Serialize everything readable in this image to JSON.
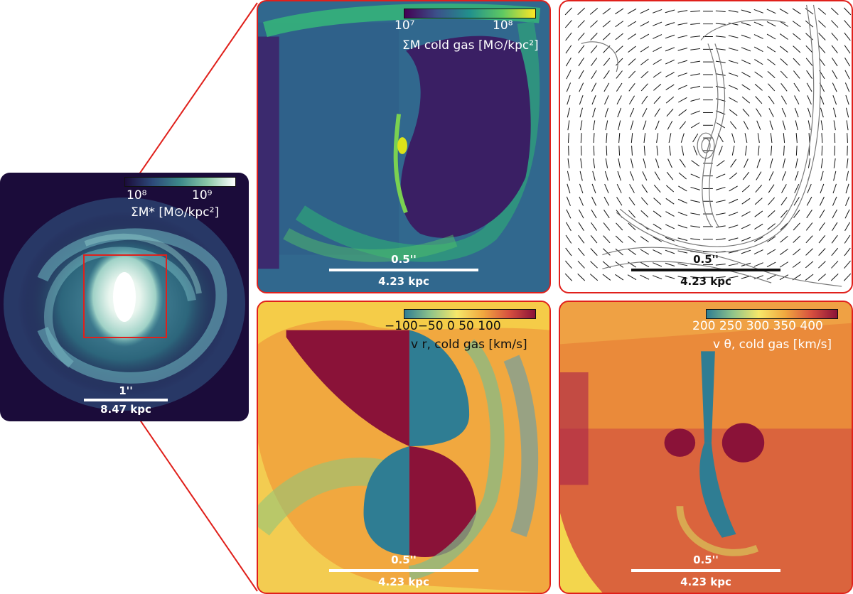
{
  "overview": {
    "cbar_tick_low": "10⁸",
    "cbar_tick_high": "10⁹",
    "cbar_label": "ΣM* [M⊙/kpc²]",
    "scale_angle": "1''",
    "scale_distance": "8.47 kpc"
  },
  "panels": {
    "cold_gas_density": {
      "cbar_tick_low": "10⁷",
      "cbar_tick_high": "10⁸",
      "cbar_label": "ΣM cold gas [M⊙/kpc²]",
      "scale_angle": "0.5''",
      "scale_distance": "4.23 kpc"
    },
    "velocity_field": {
      "scale_angle": "0.5''",
      "scale_distance": "4.23 kpc"
    },
    "radial_velocity": {
      "cbar_ticks": "−100−50   0   50  100",
      "cbar_label": "v r, cold gas [km/s]",
      "scale_angle": "0.5''",
      "scale_distance": "4.23 kpc"
    },
    "rotational_velocity": {
      "cbar_ticks": "200 250 300 350 400",
      "cbar_label": "v θ, cold gas [km/s]",
      "scale_angle": "0.5''",
      "scale_distance": "4.23 kpc"
    }
  },
  "colors": {
    "highlight": "#e0201b",
    "cubehelix_dark": "#1b0c3a",
    "viridis_dark": "#3b1e6e",
    "spectral_red": "#8a1238",
    "spectral_blue": "#2f7d93"
  }
}
